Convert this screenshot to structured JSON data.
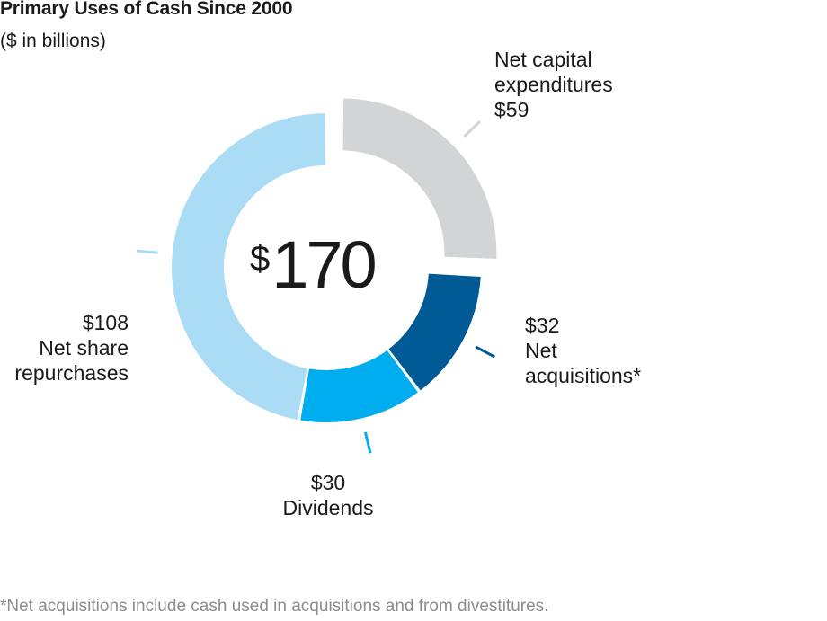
{
  "title": "Primary Uses of Cash Since 2000",
  "subtitle": "($ in billions)",
  "total": {
    "currency": "$",
    "value": "170"
  },
  "footnote": "*Net acquisitions include cash used in acquisitions and from divestitures.",
  "colors": {
    "net_capital_expenditures": "#d3d4d6",
    "net_acquisitions": "#005a96",
    "dividends": "#00aeef",
    "net_share_repurchases": "#abdcf5"
  },
  "chart_data": {
    "type": "pie",
    "donut": true,
    "title": "Primary Uses of Cash Since 2000",
    "subtitle": "($ in billions)",
    "unit": "$ billions",
    "categories": [
      "Net capital expenditures",
      "Net acquisitions*",
      "Dividends",
      "Net share repurchases"
    ],
    "values": [
      59,
      32,
      30,
      108
    ],
    "total": 170,
    "exploded": "Net capital expenditures"
  },
  "labels": {
    "capex": {
      "line1": "Net capital",
      "line2": "expenditures",
      "value": "$59"
    },
    "acquisitions": {
      "value": "$32",
      "line1": "Net",
      "line2": "acquisitions*"
    },
    "dividends": {
      "value": "$30",
      "line1": "Dividends"
    },
    "repurchases": {
      "value": "$108",
      "line1": "Net share",
      "line2": "repurchases"
    }
  }
}
